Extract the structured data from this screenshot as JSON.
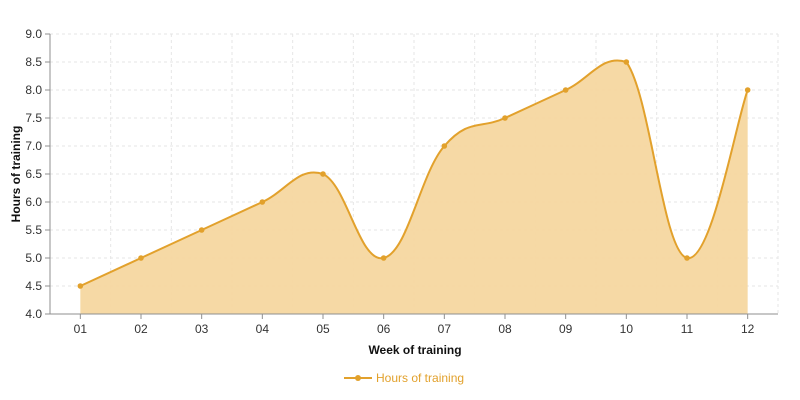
{
  "colors": {
    "series": "#E2A12C",
    "fill": "#F6D7A0",
    "grid": "#E6E6E6",
    "axis": "#8F8F8F",
    "text": "#333333"
  },
  "chart_data": {
    "type": "area",
    "title": "",
    "xlabel": "Week of training",
    "ylabel": "Hours of training",
    "categories": [
      "01",
      "02",
      "03",
      "04",
      "05",
      "06",
      "07",
      "08",
      "09",
      "10",
      "11",
      "12"
    ],
    "series": [
      {
        "name": "Hours of training",
        "values": [
          4.5,
          5.0,
          5.5,
          6.0,
          6.5,
          5.0,
          7.0,
          7.5,
          8.0,
          8.5,
          5.0,
          8.0
        ]
      }
    ],
    "ylim": [
      4.0,
      9.0
    ],
    "yticks": [
      "4.0",
      "4.5",
      "5.0",
      "5.5",
      "6.0",
      "6.5",
      "7.0",
      "7.5",
      "8.0",
      "8.5",
      "9.0"
    ],
    "grid": true,
    "smooth": true,
    "legend_position": "bottom-center"
  }
}
